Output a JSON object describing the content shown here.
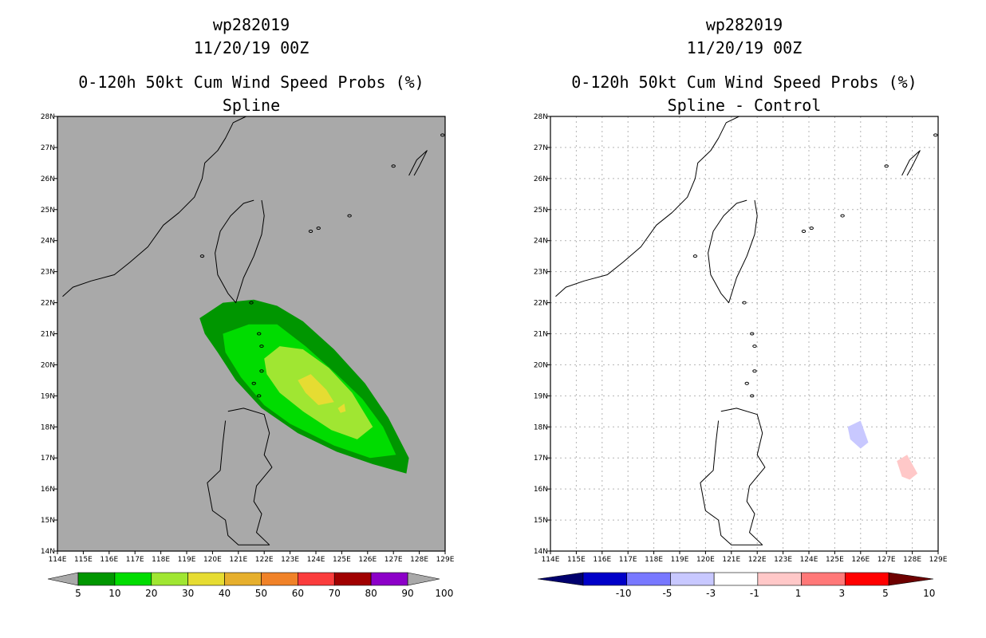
{
  "chart_data": [
    {
      "type": "heatmap",
      "storm_id": "wp282019",
      "datetime": "11/20/19 00Z",
      "title": "0-120h 50kt Cum Wind Speed Probs (%)",
      "subtitle": "Spline",
      "x_ticks": [
        "114E",
        "115E",
        "116E",
        "117E",
        "118E",
        "119E",
        "120E",
        "121E",
        "122E",
        "123E",
        "124E",
        "125E",
        "126E",
        "127E",
        "128E",
        "129E"
      ],
      "y_ticks": [
        "14N",
        "15N",
        "16N",
        "17N",
        "18N",
        "19N",
        "20N",
        "21N",
        "22N",
        "23N",
        "24N",
        "25N",
        "26N",
        "27N",
        "28N"
      ],
      "xlim": [
        114,
        129
      ],
      "ylim": [
        14,
        28
      ],
      "grid": false,
      "background": "#a9a9a9",
      "colorbar": {
        "labels": [
          "5",
          "10",
          "20",
          "30",
          "40",
          "50",
          "60",
          "70",
          "80",
          "90",
          "100"
        ],
        "colors": [
          "#009600",
          "#00dc00",
          "#a0e632",
          "#e6dc32",
          "#e6af2d",
          "#f08228",
          "#fa3c3c",
          "#a00000",
          "#8c00c8"
        ],
        "end_color": "#a9a9a9"
      },
      "contours": [
        {
          "level": "5-10",
          "color": "#009600",
          "points": [
            [
              119.5,
              21.5
            ],
            [
              120.4,
              22.0
            ],
            [
              121.6,
              22.1
            ],
            [
              122.5,
              21.9
            ],
            [
              123.5,
              21.4
            ],
            [
              124.7,
              20.5
            ],
            [
              125.9,
              19.4
            ],
            [
              126.8,
              18.3
            ],
            [
              127.6,
              17.0
            ],
            [
              127.5,
              16.5
            ],
            [
              126.2,
              16.8
            ],
            [
              124.8,
              17.2
            ],
            [
              123.3,
              17.8
            ],
            [
              121.9,
              18.6
            ],
            [
              120.9,
              19.5
            ],
            [
              120.2,
              20.4
            ],
            [
              119.7,
              21.0
            ]
          ]
        },
        {
          "level": "10-20",
          "color": "#00dc00",
          "points": [
            [
              120.4,
              21.0
            ],
            [
              121.4,
              21.3
            ],
            [
              122.5,
              21.3
            ],
            [
              123.6,
              20.6
            ],
            [
              124.8,
              19.7
            ],
            [
              125.8,
              18.9
            ],
            [
              126.6,
              18.0
            ],
            [
              127.1,
              17.1
            ],
            [
              126.1,
              17.0
            ],
            [
              124.7,
              17.4
            ],
            [
              123.0,
              18.1
            ],
            [
              122.0,
              18.7
            ],
            [
              121.1,
              19.6
            ],
            [
              120.5,
              20.4
            ]
          ]
        },
        {
          "level": "20-30",
          "color": "#a0e632",
          "points": [
            [
              122.0,
              20.2
            ],
            [
              122.6,
              20.6
            ],
            [
              123.5,
              20.5
            ],
            [
              124.5,
              19.9
            ],
            [
              125.4,
              19.1
            ],
            [
              126.2,
              18.0
            ],
            [
              125.6,
              17.6
            ],
            [
              124.6,
              17.9
            ],
            [
              123.5,
              18.5
            ],
            [
              122.6,
              19.1
            ],
            [
              122.1,
              19.7
            ]
          ]
        },
        {
          "level": "30-40",
          "color": "#e6dc32",
          "points": [
            [
              123.3,
              19.5
            ],
            [
              123.8,
              19.7
            ],
            [
              124.4,
              19.2
            ],
            [
              124.7,
              18.8
            ],
            [
              124.1,
              18.7
            ],
            [
              123.6,
              19.1
            ]
          ]
        },
        {
          "level": "30-40",
          "color": "#e6dc32",
          "points": [
            [
              124.85,
              18.6
            ],
            [
              125.1,
              18.75
            ],
            [
              125.15,
              18.5
            ],
            [
              124.95,
              18.45
            ]
          ]
        }
      ]
    },
    {
      "type": "heatmap",
      "storm_id": "wp282019",
      "datetime": "11/20/19 00Z",
      "title": "0-120h 50kt Cum Wind Speed Probs (%)",
      "subtitle": "Spline - Control",
      "x_ticks": [
        "114E",
        "115E",
        "116E",
        "117E",
        "118E",
        "119E",
        "120E",
        "121E",
        "122E",
        "123E",
        "124E",
        "125E",
        "126E",
        "127E",
        "128E",
        "129E"
      ],
      "y_ticks": [
        "14N",
        "15N",
        "16N",
        "17N",
        "18N",
        "19N",
        "20N",
        "21N",
        "22N",
        "23N",
        "24N",
        "25N",
        "26N",
        "27N",
        "28N"
      ],
      "xlim": [
        114,
        129
      ],
      "ylim": [
        14,
        28
      ],
      "grid": true,
      "background": "#ffffff",
      "colorbar": {
        "labels": [
          "-10",
          "-5",
          "-3",
          "-1",
          "1",
          "3",
          "5",
          "10"
        ],
        "colors": [
          "#0000c8",
          "#7878ff",
          "#c8c8ff",
          "#ffffff",
          "#ffc8c8",
          "#ff7878",
          "#ff0000"
        ],
        "end_left": "#00006e",
        "end_right": "#6e0000"
      },
      "contours": [
        {
          "level": "-3 to -1",
          "color": "#c8c8ff",
          "points": [
            [
              125.5,
              18.0
            ],
            [
              126.0,
              18.2
            ],
            [
              126.3,
              17.5
            ],
            [
              126.0,
              17.3
            ],
            [
              125.6,
              17.6
            ]
          ]
        },
        {
          "level": "1 to 3",
          "color": "#ffc8c8",
          "points": [
            [
              127.4,
              16.9
            ],
            [
              127.8,
              17.1
            ],
            [
              128.2,
              16.5
            ],
            [
              127.9,
              16.3
            ],
            [
              127.6,
              16.4
            ]
          ]
        }
      ]
    }
  ]
}
